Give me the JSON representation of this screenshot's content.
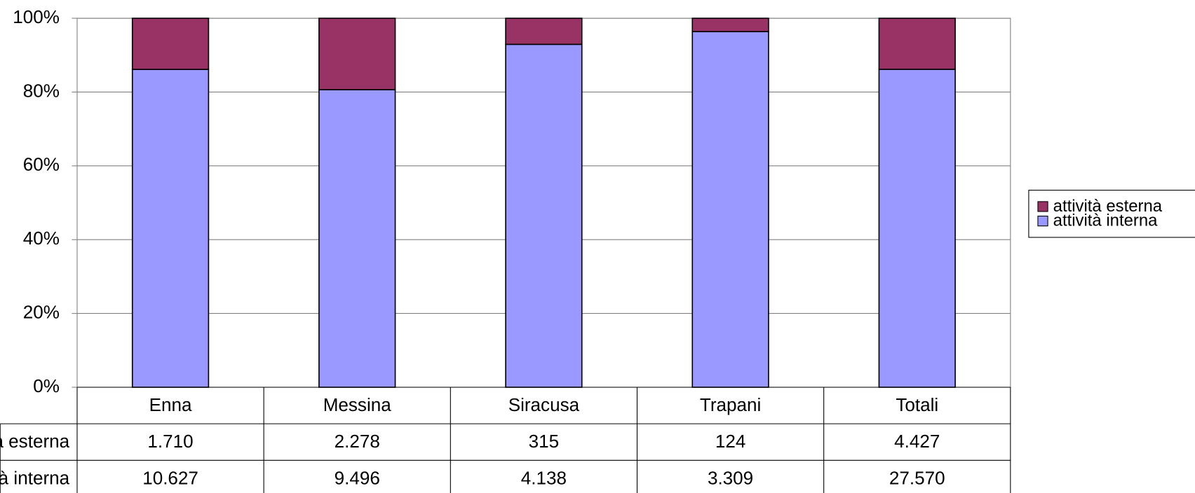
{
  "chart_data": {
    "type": "bar",
    "stacking": "percent",
    "categories": [
      "Enna",
      "Messina",
      "Siracusa",
      "Trapani",
      "Totali"
    ],
    "series": [
      {
        "name": "attività esterna",
        "color": "#993366",
        "values": [
          1710,
          2278,
          315,
          124,
          4427
        ],
        "value_labels": [
          "1.710",
          "2.278",
          "315",
          "124",
          "4.427"
        ]
      },
      {
        "name": "attività interna",
        "color": "#9999ff",
        "values": [
          10627,
          9496,
          4138,
          3309,
          27570
        ],
        "value_labels": [
          "10.627",
          "9.496",
          "4.138",
          "3.309",
          "27.570"
        ]
      }
    ],
    "ylim": [
      0,
      100
    ],
    "yticks": [
      {
        "value": 0,
        "label": "0%"
      },
      {
        "value": 20,
        "label": "20%"
      },
      {
        "value": 40,
        "label": "40%"
      },
      {
        "value": 60,
        "label": "60%"
      },
      {
        "value": 80,
        "label": "80%"
      },
      {
        "value": 100,
        "label": "100%"
      }
    ],
    "grid": true,
    "legend": "right",
    "data_table": true
  }
}
